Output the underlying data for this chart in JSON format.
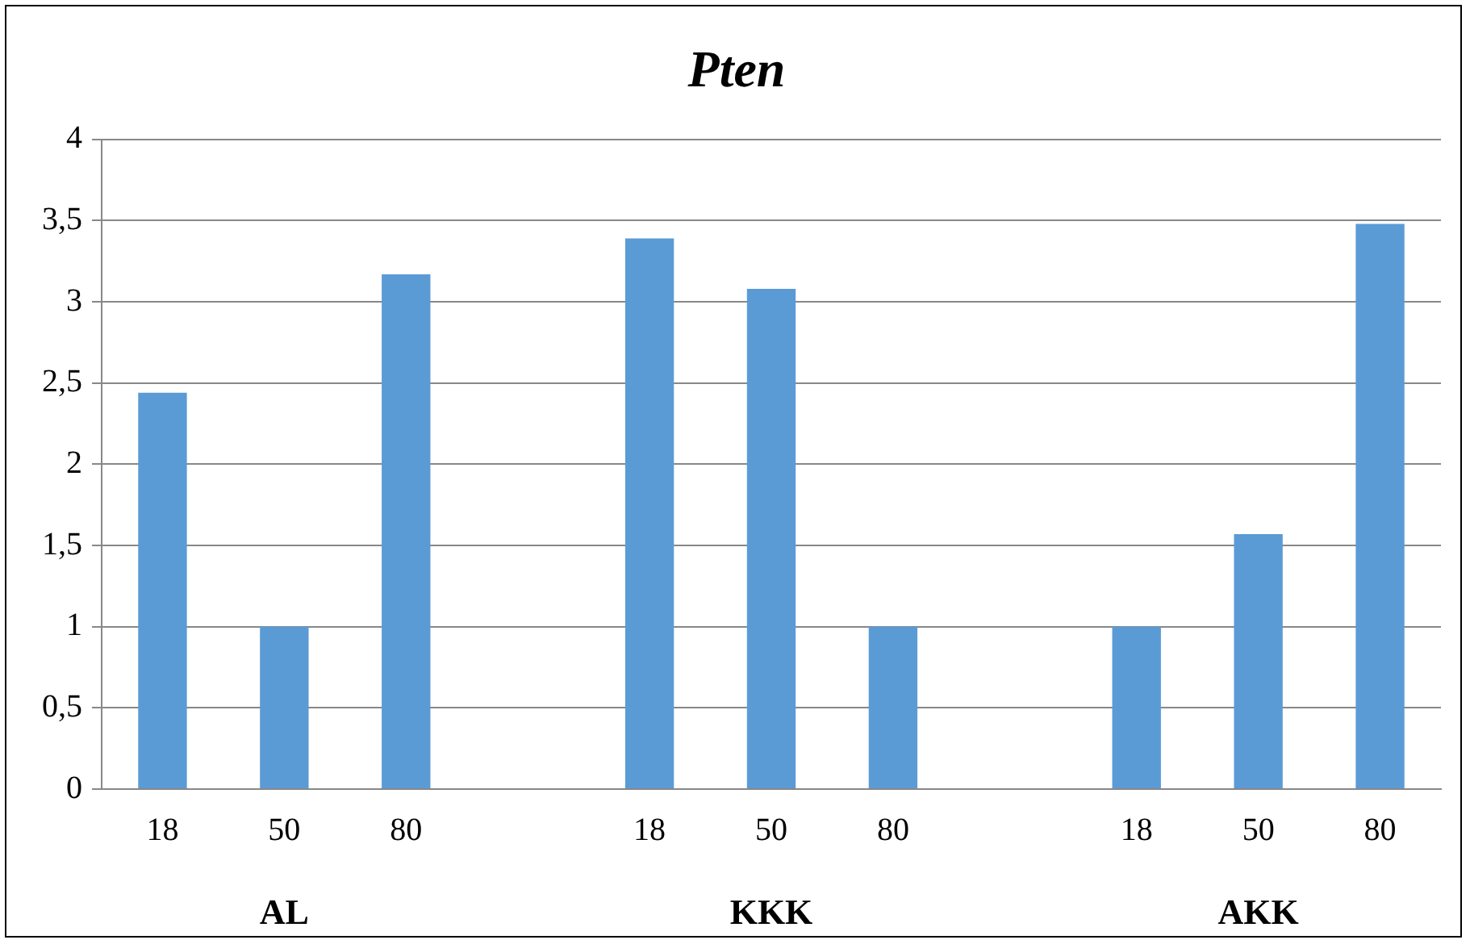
{
  "chart_data": {
    "type": "bar",
    "title": "Pten",
    "categories": [
      "18",
      "50",
      "80",
      null,
      "18",
      "50",
      "80",
      null,
      "18",
      "50",
      "80"
    ],
    "series": [
      {
        "color": "#5b9bd5",
        "values": [
          2.44,
          1,
          3.17,
          null,
          3.39,
          3.08,
          1,
          null,
          1,
          1.57,
          3.48
        ]
      }
    ],
    "annotations": [
      "AL",
      "KKK",
      "AKK"
    ],
    "ylim": [
      0,
      4
    ],
    "yticks": [
      0,
      {
        "value": 0.5,
        "label": "0,5"
      },
      1,
      {
        "value": 1.5,
        "label": "1,5"
      },
      2,
      {
        "value": 2.5,
        "label": "2,5"
      },
      3,
      {
        "value": 3.5,
        "label": "3,5"
      },
      4
    ],
    "grid": "y",
    "legend": false
  }
}
